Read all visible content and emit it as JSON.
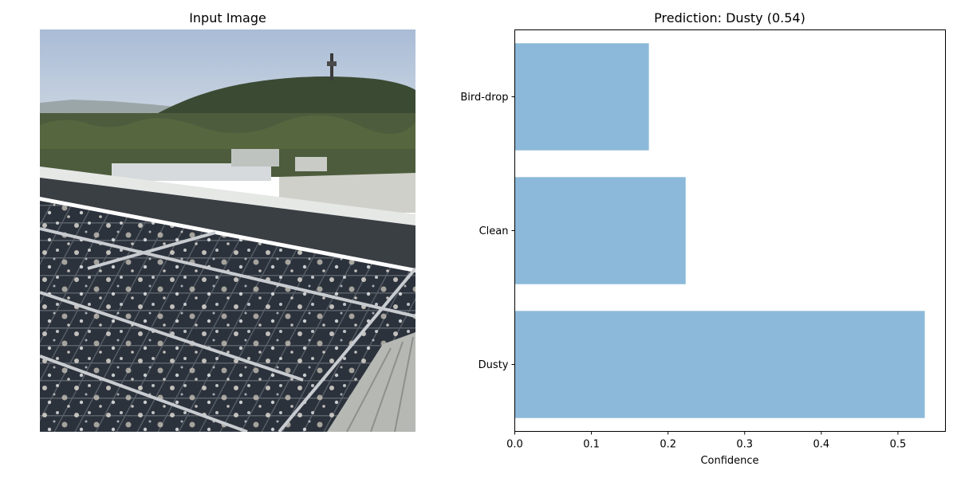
{
  "left_panel": {
    "title": "Input Image",
    "scene": {
      "sky_color": "#b9c8dc",
      "hill_color": "#3b4a33",
      "tree_color": "#4a5a3a",
      "wall_color": "#e4e7e4",
      "panel_color": "#2b3038",
      "frame_color": "#c8ccd0",
      "dust_color": "#d8d2c8",
      "roof_color": "#b8bab6"
    }
  },
  "chart_data": {
    "type": "bar",
    "orientation": "horizontal",
    "title": "Prediction: Dusty (0.54)",
    "xlabel": "Confidence",
    "ylabel": "",
    "categories": [
      "Dusty",
      "Clean",
      "Bird-drop"
    ],
    "values": [
      0.535,
      0.223,
      0.175
    ],
    "xlim": [
      0,
      0.562
    ],
    "xticks": [
      "0.0",
      "0.1",
      "0.2",
      "0.3",
      "0.4",
      "0.5"
    ],
    "bar_color": "#8cb9d9",
    "grid": false,
    "legend": "none"
  }
}
